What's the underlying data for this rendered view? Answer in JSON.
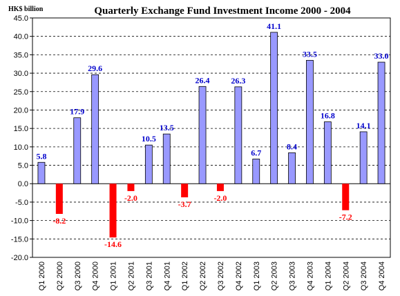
{
  "chart_data": {
    "type": "bar",
    "title": "Quarterly Exchange Fund Investment Income 2000 - 2004",
    "unit_label": "HK$ billion",
    "xlabel": "",
    "ylabel": "",
    "ylim": [
      -20.0,
      45.0
    ],
    "ytick_step": 5,
    "grid": true,
    "legend": "none",
    "colors": {
      "positive_bar": "#9999ff",
      "negative_bar": "#ff0000",
      "positive_label": "#0000cc",
      "negative_label": "#ff0000",
      "gridline": "#000000"
    },
    "categories": [
      "Q1 2000",
      "Q2 2000",
      "Q3 2000",
      "Q4 2000",
      "Q1 2001",
      "Q2 2001",
      "Q3 2001",
      "Q4 2001",
      "Q1 2002",
      "Q2 2002",
      "Q3 2002",
      "Q4 2002",
      "Q1 2003",
      "Q2 2003",
      "Q3 2003",
      "Q4 2003",
      "Q1 2004",
      "Q2 2004",
      "Q3 2004",
      "Q4 2004"
    ],
    "values": [
      5.8,
      -8.2,
      17.9,
      29.6,
      -14.6,
      -2.0,
      10.5,
      13.5,
      -3.7,
      26.4,
      -2.0,
      26.3,
      6.7,
      41.1,
      8.4,
      33.5,
      16.8,
      -7.2,
      14.1,
      33.0
    ],
    "value_labels": [
      "5.8",
      "-8.2",
      "17.9",
      "29.6",
      "-14.6",
      "-2.0",
      "10.5",
      "13.5",
      "-3.7",
      "26.4",
      "-2.0",
      "26.3",
      "6.7",
      "41.1",
      "8.4",
      "33.5",
      "16.8",
      "-7.2",
      "14.1",
      "33.0"
    ],
    "ytick_labels": [
      "45.0",
      "40.0",
      "35.0",
      "30.0",
      "25.0",
      "20.0",
      "15.0",
      "10.0",
      "5.0",
      "0.0",
      "-5.0",
      "-10.0",
      "-15.0",
      "-20.0"
    ]
  }
}
